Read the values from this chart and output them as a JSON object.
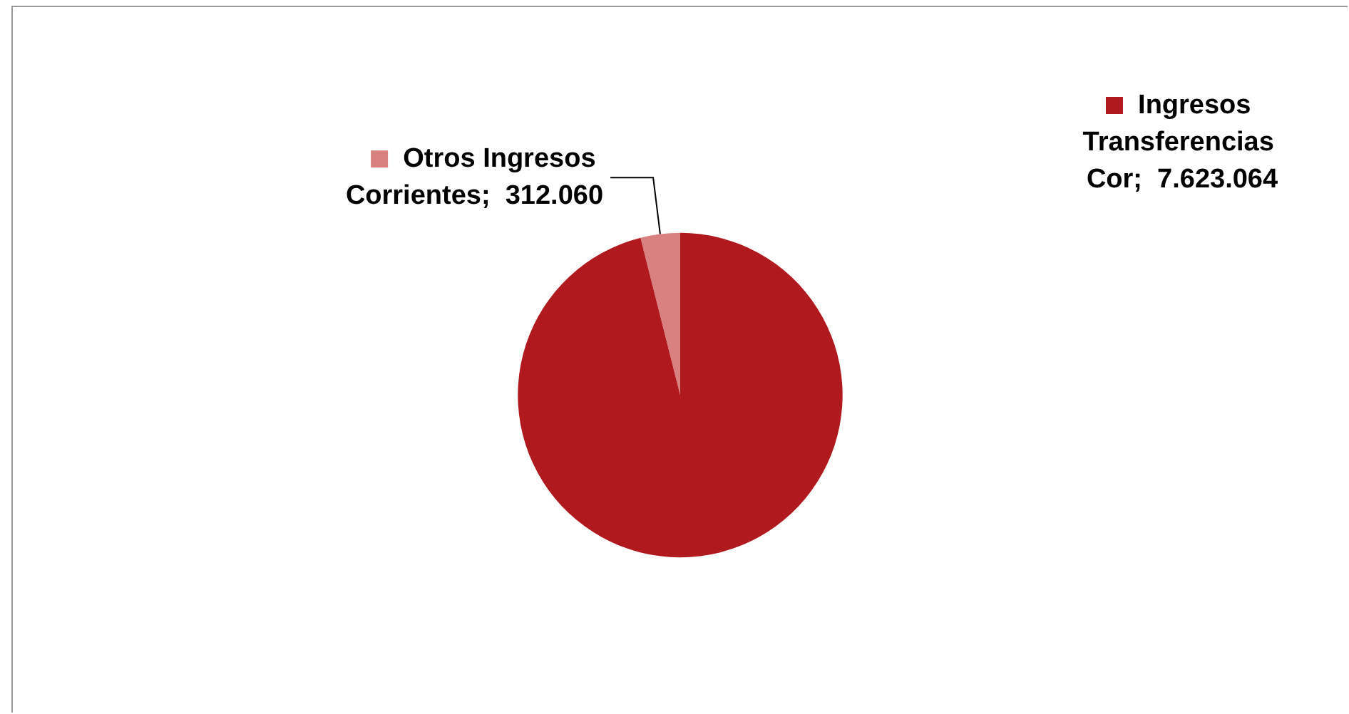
{
  "chart_data": {
    "type": "pie",
    "categories": [
      "Otros Ingresos Corrientes",
      "Ingresos Transferencias Cor"
    ],
    "values": [
      312060,
      7623064
    ],
    "colors": [
      "#d98080",
      "#b0191e"
    ],
    "value_labels": [
      "312.060",
      "7.623.064"
    ],
    "legend": "top right"
  }
}
